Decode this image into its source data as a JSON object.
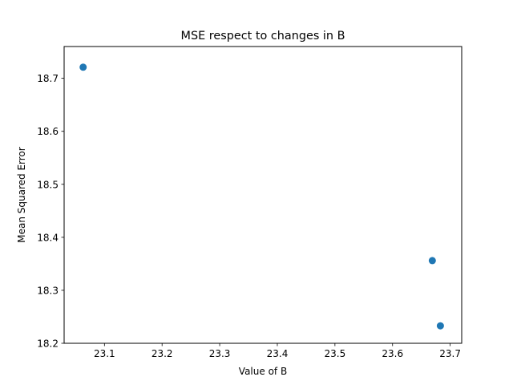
{
  "chart_data": {
    "type": "scatter",
    "title": "MSE respect to changes in B",
    "xlabel": "Value of B",
    "ylabel": "Mean Squared Error",
    "xlim": [
      23.03,
      23.72
    ],
    "ylim": [
      18.2,
      18.76
    ],
    "xticks": [
      23.1,
      23.2,
      23.3,
      23.4,
      23.5,
      23.6,
      23.7
    ],
    "xtick_labels": [
      "23.1",
      "23.2",
      "23.3",
      "23.4",
      "23.5",
      "23.6",
      "23.7"
    ],
    "yticks": [
      18.2,
      18.3,
      18.4,
      18.5,
      18.6,
      18.7
    ],
    "ytick_labels": [
      "18.2",
      "18.3",
      "18.4",
      "18.5",
      "18.6",
      "18.7"
    ],
    "grid": false,
    "series": [
      {
        "name": "MSE",
        "color": "#1f77b4",
        "points": [
          {
            "x": 23.063,
            "y": 18.721
          },
          {
            "x": 23.669,
            "y": 18.356
          },
          {
            "x": 23.683,
            "y": 18.233
          }
        ]
      }
    ]
  }
}
